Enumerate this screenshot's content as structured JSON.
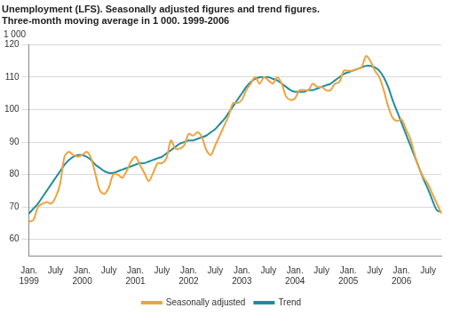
{
  "chart_data": {
    "type": "line",
    "title": [
      "Unemployment (LFS). Seasonally adjusted figures and trend figures.",
      "Three-month moving average in 1 000. 1999-2006"
    ],
    "ylabel": "1 000",
    "categories": [
      "Jan. 1999",
      null,
      null,
      null,
      null,
      null,
      "July",
      null,
      null,
      null,
      null,
      null,
      "Jan. 2000",
      null,
      null,
      null,
      null,
      null,
      "July",
      null,
      null,
      null,
      null,
      null,
      "Jan. 2001",
      null,
      null,
      null,
      null,
      null,
      "July",
      null,
      null,
      null,
      null,
      null,
      "Jan. 2002",
      null,
      null,
      null,
      null,
      null,
      "July",
      null,
      null,
      null,
      null,
      null,
      "Jan. 2003",
      null,
      null,
      null,
      null,
      null,
      "July",
      null,
      null,
      null,
      null,
      null,
      "Jan. 2004",
      null,
      null,
      null,
      null,
      null,
      "July",
      null,
      null,
      null,
      null,
      null,
      "Jan. 2005",
      null,
      null,
      null,
      null,
      null,
      "July",
      null,
      null,
      null,
      null,
      null,
      "Jan. 2006",
      null,
      null,
      null,
      null,
      null,
      "July",
      null,
      null,
      null
    ],
    "series": [
      {
        "name": "Seasonally adjusted",
        "color": "#f0a23c",
        "line_style": "solid",
        "values": [
          65.5,
          66,
          70,
          71,
          71.5,
          71,
          73,
          77,
          85.5,
          87,
          86,
          85.5,
          86,
          87,
          85,
          80,
          75,
          74,
          76,
          80,
          80,
          79,
          81,
          84,
          85.5,
          83,
          80.5,
          78,
          80.5,
          83.5,
          83.5,
          85,
          90.5,
          88,
          88,
          89,
          92.5,
          92,
          93,
          91.5,
          87.5,
          86,
          89,
          92,
          95,
          98,
          102,
          102,
          103,
          106,
          108,
          110,
          108,
          110,
          109,
          108,
          110,
          108,
          104,
          103,
          103.5,
          106,
          106,
          106,
          108,
          107,
          107,
          106,
          106,
          108,
          108.5,
          112,
          112,
          112,
          112.5,
          113,
          116.5,
          115,
          112,
          110,
          106,
          101,
          97.5,
          96.5,
          97,
          94,
          91,
          86,
          82,
          79,
          77,
          74,
          71,
          68
        ]
      },
      {
        "name": "Trend",
        "color": "#1f8d9e",
        "line_style": "solid",
        "values": [
          68,
          69.5,
          71,
          73,
          75,
          77,
          79,
          81,
          83,
          84.5,
          85.5,
          86,
          86,
          85.5,
          84.5,
          83,
          82,
          81,
          80.5,
          80.5,
          81,
          81.5,
          82,
          82.5,
          83,
          83.5,
          83.5,
          84,
          84.5,
          85,
          85.5,
          86.5,
          87.5,
          88.5,
          89.5,
          90,
          90.5,
          90.5,
          91,
          91.5,
          92,
          93,
          94,
          95.5,
          97,
          99,
          101,
          103,
          105,
          107,
          108.5,
          109.5,
          110,
          110,
          110,
          109.5,
          109,
          108,
          107,
          106,
          105.5,
          105.5,
          105.5,
          106,
          106,
          106.5,
          107,
          107.5,
          108,
          109,
          110,
          111,
          111.5,
          112,
          112.5,
          113,
          113.5,
          113.5,
          113,
          112,
          110,
          107,
          103,
          99.5,
          96,
          92.5,
          89,
          85.5,
          82,
          78.5,
          75.5,
          72,
          69,
          68.5
        ]
      }
    ],
    "ylim": [
      55,
      120
    ],
    "yticks": [
      60,
      70,
      80,
      90,
      100,
      110,
      120
    ],
    "grid": true,
    "legend": "bottom",
    "marker": "none"
  }
}
